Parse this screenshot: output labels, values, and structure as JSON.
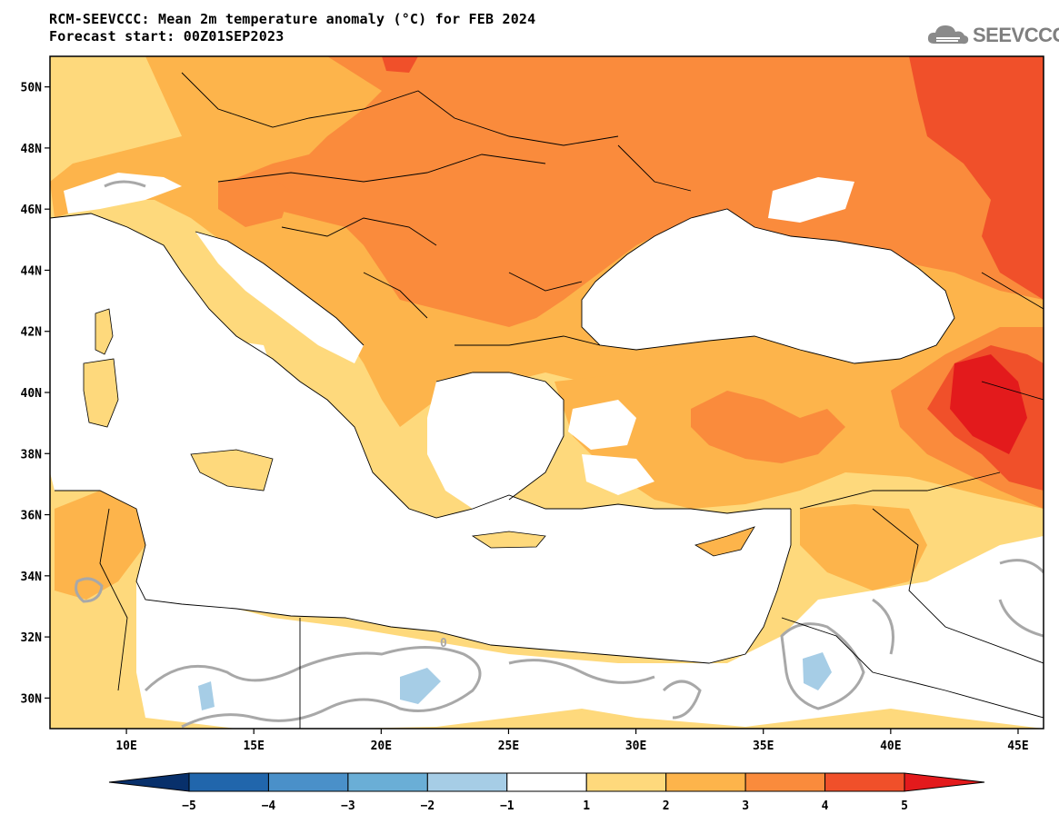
{
  "header": {
    "title_line1": "RCM-SEEVCCC: Mean 2m temperature anomaly (°C) for FEB 2024",
    "title_line2": "Forecast start: 00Z01SEP2023",
    "logo_text": "SEEVCCC"
  },
  "map": {
    "lon_range": [
      7,
      46
    ],
    "lat_range": [
      29,
      51
    ],
    "lat_ticks": [
      {
        "value": 50,
        "label": "50N"
      },
      {
        "value": 48,
        "label": "48N"
      },
      {
        "value": 46,
        "label": "46N"
      },
      {
        "value": 44,
        "label": "44N"
      },
      {
        "value": 42,
        "label": "42N"
      },
      {
        "value": 40,
        "label": "40N"
      },
      {
        "value": 38,
        "label": "38N"
      },
      {
        "value": 36,
        "label": "36N"
      },
      {
        "value": 34,
        "label": "34N"
      },
      {
        "value": 32,
        "label": "32N"
      },
      {
        "value": 30,
        "label": "30N"
      }
    ],
    "lon_ticks": [
      {
        "value": 10,
        "label": "10E"
      },
      {
        "value": 15,
        "label": "15E"
      },
      {
        "value": 20,
        "label": "20E"
      },
      {
        "value": 25,
        "label": "25E"
      },
      {
        "value": 30,
        "label": "30E"
      },
      {
        "value": 35,
        "label": "35E"
      },
      {
        "value": 40,
        "label": "40E"
      },
      {
        "value": 45,
        "label": "45E"
      }
    ],
    "contour_label": "0"
  },
  "colorbar": {
    "min_color": "#08306b",
    "max_color": "#e31a1c",
    "bins": [
      "#2166ac",
      "#4a90c9",
      "#6aaed6",
      "#a6cde6",
      "#ffffff",
      "#fed97c",
      "#fdb44b",
      "#fa8b3c",
      "#f0502a"
    ],
    "labels": [
      "−5",
      "−4",
      "−3",
      "−2",
      "−1",
      "1",
      "2",
      "3",
      "4",
      "5"
    ]
  },
  "palette": {
    "sea": "#ffffff",
    "white_land": "#ffffff",
    "c1": "#fed97c",
    "c2": "#fdb44b",
    "c3": "#fa8b3c",
    "c4": "#f0502a",
    "c5": "#e31a1c",
    "neg1": "#a6cde6",
    "contour": "#a8a8a8"
  }
}
